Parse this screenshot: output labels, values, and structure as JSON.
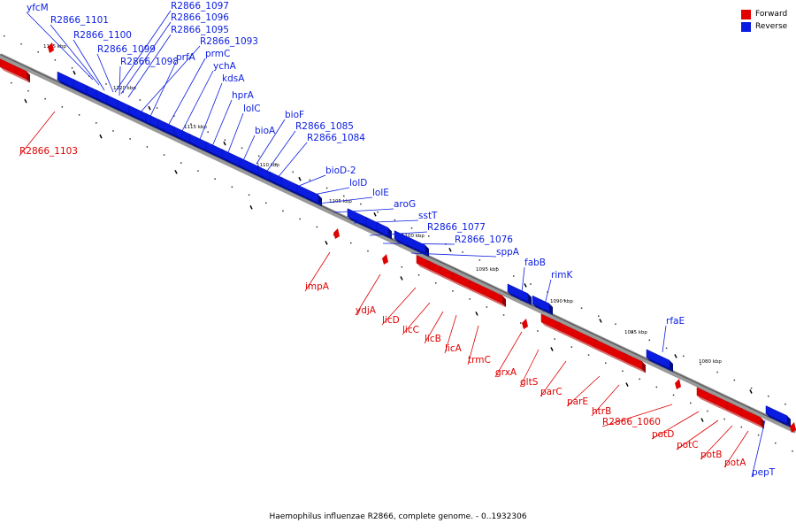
{
  "legend": {
    "forward_label": "Forward",
    "reverse_label": "Reverse",
    "forward_color": "#e00000",
    "reverse_color": "#0a1ce0"
  },
  "caption": "Haemophilus influenzae R2866, complete genome. - 0..1932306",
  "scale_labels": [
    "1125 kbp",
    "1120 kbp",
    "1115 kbp",
    "1110 kbp",
    "1105 kbp",
    "1100 kbp",
    "1095 kbp",
    "1090 kbp",
    "1085 kbp",
    "1080 kbp"
  ],
  "reverse_genes": [
    "yfcM",
    "R2866_1101",
    "R2866_1100",
    "R2866_1099",
    "R2866_1098",
    "R2866_1097",
    "R2866_1096",
    "R2866_1095",
    "R2866_1093",
    "prfA",
    "prmC",
    "ychA",
    "kdsA",
    "hprA",
    "lolC",
    "bioF",
    "bioA",
    "R2866_1085",
    "R2866_1084",
    "bioD-2",
    "lolD",
    "lolE",
    "aroG",
    "sstT",
    "R2866_1077",
    "R2866_1076",
    "sppA",
    "fabB",
    "rimK",
    "rfaE",
    "pepT"
  ],
  "forward_genes": [
    "R2866_1103",
    "impA",
    "ydjA",
    "licD",
    "licC",
    "licB",
    "licA",
    "trmC",
    "grxA",
    "gltS",
    "parC",
    "parE",
    "htrB",
    "R2866_1060",
    "potD",
    "potC",
    "potB",
    "potA"
  ]
}
